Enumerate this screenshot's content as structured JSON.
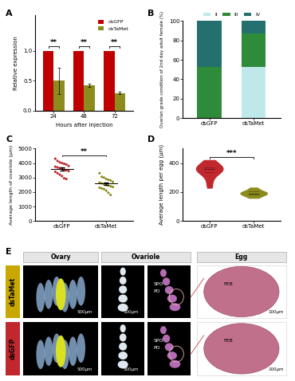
{
  "chart_data": [
    {
      "panel_label": "A",
      "type": "bar",
      "x_label": "Hours after injection",
      "y_label": "Relative expression",
      "categories": [
        "24",
        "48",
        "72"
      ],
      "series": [
        {
          "name": "dsGFP",
          "color": "#c00000",
          "values": [
            1,
            1,
            1
          ]
        },
        {
          "name": "dsTaMet",
          "color": "#8c8c1e",
          "values": [
            0.5,
            0.42,
            0.29
          ],
          "error": [
            0.22,
            0.03,
            0.02
          ]
        }
      ],
      "annotations": [
        "**",
        "**",
        "**"
      ],
      "ylim": [
        0,
        1.6
      ],
      "yticks": [
        0.0,
        0.5,
        1.0
      ],
      "legend": "upper right"
    },
    {
      "panel_label": "B",
      "type": "bar",
      "stacked": true,
      "y_label": "Ovarian grade condition of 2nd day adult female (%)",
      "categories": [
        "dsGFP",
        "dsTaMet"
      ],
      "series": [
        {
          "name": "II",
          "color": "#bfe8ea",
          "values": [
            0,
            53
          ]
        },
        {
          "name": "III",
          "color": "#2e8b3a",
          "values": [
            53,
            34
          ]
        },
        {
          "name": "IV",
          "color": "#24706e",
          "values": [
            47,
            13
          ]
        }
      ],
      "ylim": [
        0,
        100
      ],
      "yticks": [
        0,
        20,
        40,
        60,
        80,
        100
      ],
      "legend": "upper center"
    },
    {
      "panel_label": "C",
      "type": "scatter",
      "y_label": "Average length of ovariole (μm)",
      "categories": [
        "dsGFP",
        "dsTaMet"
      ],
      "colors": [
        "#c0282d",
        "#8c8c1e"
      ],
      "values": [
        [
          4300,
          4150,
          4050,
          4000,
          3950,
          3900,
          3800,
          3750,
          3700,
          3650,
          3600,
          3550,
          3500,
          3450,
          3400,
          3300,
          3200,
          3100,
          2950,
          2900
        ],
        [
          3300,
          3050,
          3000,
          2900,
          2850,
          2800,
          2700,
          2650,
          2600,
          2550,
          2500,
          2450,
          2400,
          2350,
          2300,
          2250,
          2200,
          2100,
          1950,
          1800
        ]
      ],
      "mean": [
        3600,
        2580
      ],
      "error": [
        100,
        90
      ],
      "annotation": "**",
      "ylim": [
        0,
        5000
      ],
      "yticks": [
        0,
        1000,
        2000,
        3000,
        4000,
        5000
      ]
    },
    {
      "panel_label": "D",
      "type": "violin",
      "y_label": "Average length per egg (μm)",
      "categories": [
        "dsGFP",
        "dsTaMet"
      ],
      "colors": [
        "#c0282d",
        "#8c8c1e"
      ],
      "values": [
        [
          230,
          280,
          320,
          340,
          350,
          355,
          360,
          365,
          370,
          380,
          400,
          420
        ],
        [
          160,
          170,
          180,
          185,
          190,
          190,
          195,
          200,
          205,
          215,
          230
        ]
      ],
      "annotation": "***",
      "ylim": [
        0,
        500
      ],
      "yticks": [
        0,
        200,
        400
      ]
    }
  ],
  "image_panel": {
    "panel_label": "E",
    "columns": [
      "Ovary",
      "Ovariole",
      "Egg"
    ],
    "rows": [
      {
        "name": "dsTaMet",
        "color": "#c8a800"
      },
      {
        "name": "dsGFP",
        "color": "#c0282d"
      }
    ],
    "structures": [
      "PO",
      "SPO",
      "FEB"
    ],
    "scale_bars": [
      "500μm",
      "100μm"
    ]
  }
}
